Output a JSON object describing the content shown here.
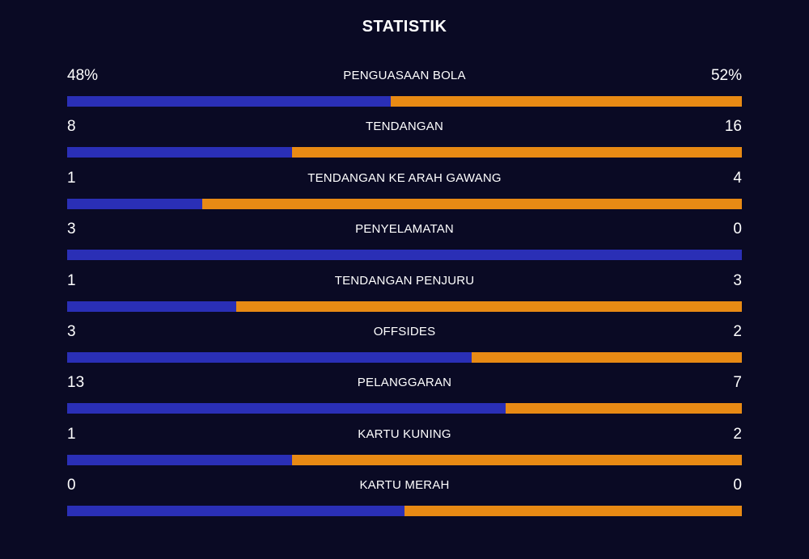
{
  "title": "STATISTIK",
  "colors": {
    "background": "#0a0a24",
    "home": "#2a2fb6",
    "away": "#e88a14",
    "text": "#ffffff"
  },
  "stats": [
    {
      "label": "PENGUASAAN BOLA",
      "home": "48%",
      "away": "52%",
      "home_share": 0.48
    },
    {
      "label": "TENDANGAN",
      "home": "8",
      "away": "16",
      "home_share": 0.333
    },
    {
      "label": "TENDANGAN KE ARAH GAWANG",
      "home": "1",
      "away": "4",
      "home_share": 0.2
    },
    {
      "label": "PENYELAMATAN",
      "home": "3",
      "away": "0",
      "home_share": 1.0
    },
    {
      "label": "TENDANGAN PENJURU",
      "home": "1",
      "away": "3",
      "home_share": 0.25
    },
    {
      "label": "OFFSIDES",
      "home": "3",
      "away": "2",
      "home_share": 0.6
    },
    {
      "label": "PELANGGARAN",
      "home": "13",
      "away": "7",
      "home_share": 0.65
    },
    {
      "label": "KARTU KUNING",
      "home": "1",
      "away": "2",
      "home_share": 0.333
    },
    {
      "label": "KARTU MERAH",
      "home": "0",
      "away": "0",
      "home_share": 0.5
    }
  ]
}
